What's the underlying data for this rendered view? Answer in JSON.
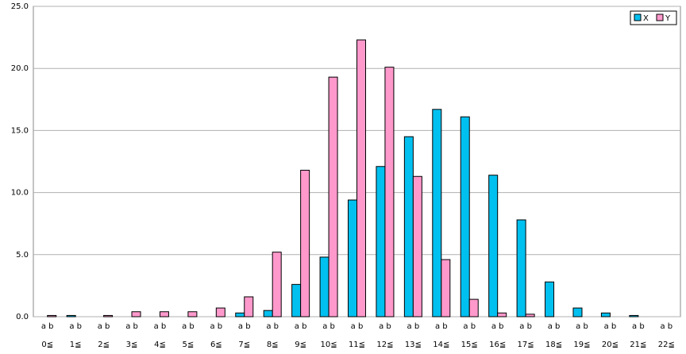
{
  "chart_data": {
    "type": "bar",
    "categories": [
      [
        "a b",
        "0≦"
      ],
      [
        "a b",
        "1≦"
      ],
      [
        "a b",
        "2≦"
      ],
      [
        "a b",
        "3≦"
      ],
      [
        "a b",
        "4≦"
      ],
      [
        "a b",
        "5≦"
      ],
      [
        "a b",
        "6≦"
      ],
      [
        "a b",
        "7≦"
      ],
      [
        "a b",
        "8≦"
      ],
      [
        "a b",
        "9≦"
      ],
      [
        "a b",
        "10≦"
      ],
      [
        "a b",
        "11≦"
      ],
      [
        "a b",
        "12≦"
      ],
      [
        "a b",
        "13≦"
      ],
      [
        "a b",
        "14≦"
      ],
      [
        "a b",
        "15≦"
      ],
      [
        "a b",
        "16≦"
      ],
      [
        "a b",
        "17≦"
      ],
      [
        "a b",
        "18≦"
      ],
      [
        "a b",
        "19≦"
      ],
      [
        "a b",
        "20≦"
      ],
      [
        "a b",
        "21≦"
      ],
      [
        "a b",
        "22≦"
      ]
    ],
    "series": [
      {
        "name": "X",
        "color": "#00c0f0",
        "values": [
          0,
          0.1,
          0,
          0,
          0,
          0,
          0,
          0.3,
          0.5,
          2.6,
          4.8,
          9.4,
          12.1,
          14.5,
          16.7,
          16.1,
          11.4,
          7.8,
          2.8,
          0.7,
          0.3,
          0.1,
          0
        ]
      },
      {
        "name": "Y",
        "color": "#ff99cc",
        "values": [
          0.1,
          0,
          0.1,
          0.4,
          0.4,
          0.4,
          0.7,
          1.6,
          5.2,
          11.8,
          19.3,
          22.3,
          20.1,
          11.3,
          4.6,
          1.4,
          0.3,
          0.2,
          0,
          0,
          0,
          0,
          0
        ]
      }
    ],
    "ylim": [
      0,
      25
    ],
    "yticks": [
      {
        "value": 0,
        "label": "0.0"
      },
      {
        "value": 5,
        "label": "5.0"
      },
      {
        "value": 10,
        "label": "10.0"
      },
      {
        "value": 15,
        "label": "15.0"
      },
      {
        "value": 20,
        "label": "20.0"
      },
      {
        "value": 25,
        "label": "25.0"
      }
    ],
    "grid": true,
    "legend": "top-right"
  }
}
